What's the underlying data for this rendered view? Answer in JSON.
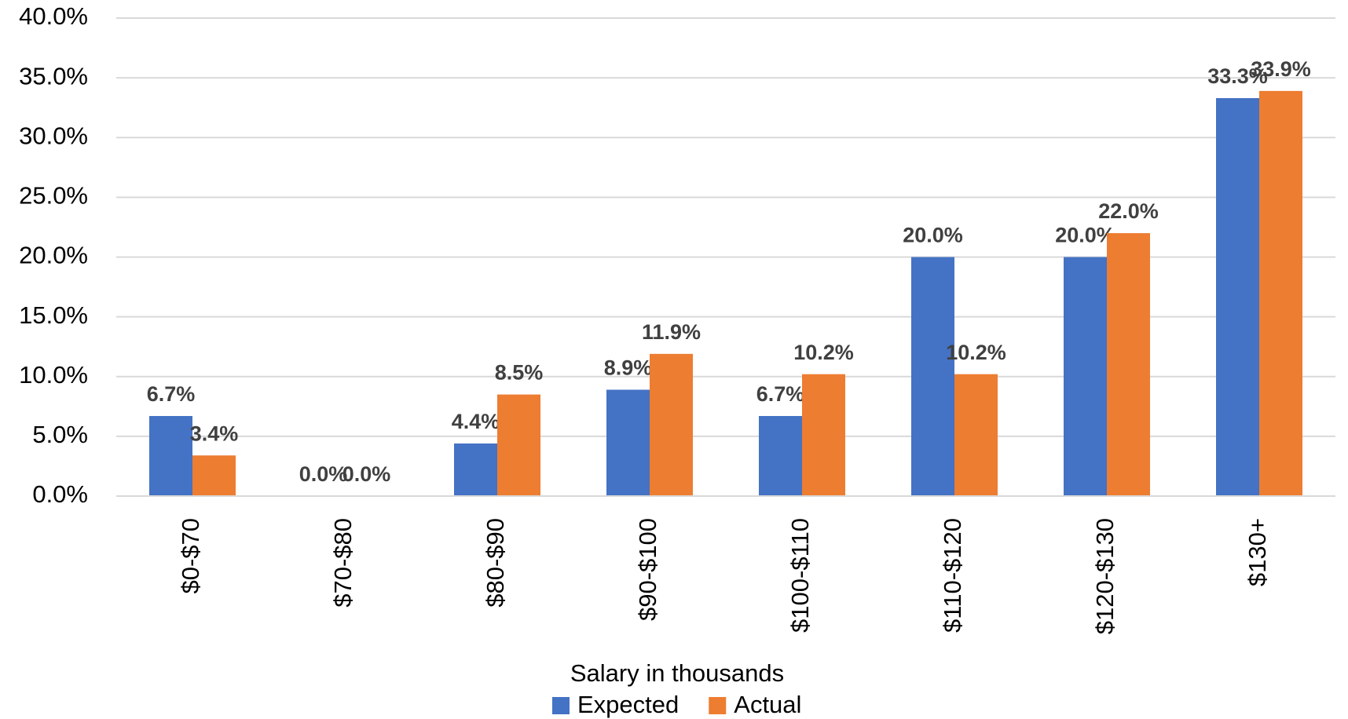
{
  "chart_data": {
    "type": "bar",
    "x_label": "Salary in thousands",
    "categories": [
      "$0-$70",
      "$70-$80",
      "$80-$90",
      "$90-$100",
      "$100-$110",
      "$110-$120",
      "$120-$130",
      "$130+"
    ],
    "series": [
      {
        "name": "Expected",
        "color": "#4472c4",
        "values": [
          6.7,
          0.0,
          4.4,
          8.9,
          6.7,
          20.0,
          20.0,
          33.3
        ],
        "value_labels": [
          "6.7%",
          "0.0%",
          "4.4%",
          "8.9%",
          "6.7%",
          "20.0%",
          "20.0%",
          "33.3%"
        ]
      },
      {
        "name": "Actual",
        "color": "#ed7d31",
        "values": [
          3.4,
          0.0,
          8.5,
          11.9,
          10.2,
          10.2,
          22.0,
          33.9
        ],
        "value_labels": [
          "3.4%",
          "0.0%",
          "8.5%",
          "11.9%",
          "10.2%",
          "10.2%",
          "22.0%",
          "33.9%"
        ]
      }
    ],
    "ylim": [
      0,
      40
    ],
    "yticks": [
      {
        "value": 0,
        "label": "0.0%"
      },
      {
        "value": 5,
        "label": "5.0%"
      },
      {
        "value": 10,
        "label": "10.0%"
      },
      {
        "value": 15,
        "label": "15.0%"
      },
      {
        "value": 20,
        "label": "20.0%"
      },
      {
        "value": 25,
        "label": "25.0%"
      },
      {
        "value": 30,
        "label": "30.0%"
      },
      {
        "value": 35,
        "label": "35.0%"
      },
      {
        "value": 40,
        "label": "40.0%"
      }
    ],
    "grid": true,
    "legend": "bottom"
  }
}
